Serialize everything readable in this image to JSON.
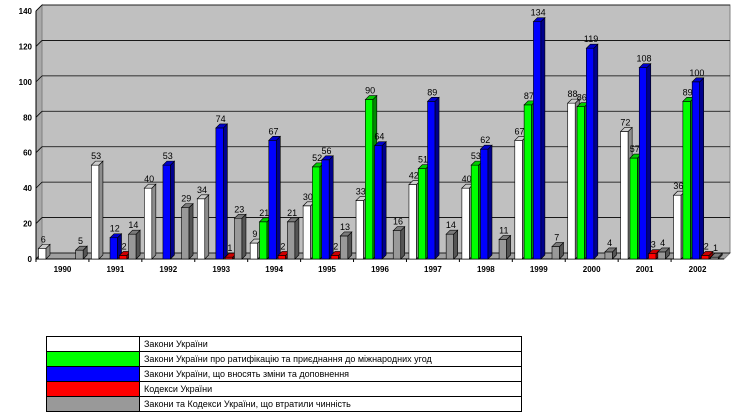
{
  "chart_data": {
    "type": "bar",
    "title": "",
    "xlabel": "",
    "ylabel": "",
    "ylim": [
      0,
      140
    ],
    "yticks": [
      0,
      20,
      40,
      60,
      80,
      100,
      120,
      140
    ],
    "grid": true,
    "legend_position": "bottom-left",
    "categories": [
      "1990",
      "1991",
      "1992",
      "1993",
      "1994",
      "1995",
      "1996",
      "1997",
      "1998",
      "1999",
      "2000",
      "2001",
      "2002"
    ],
    "series": [
      {
        "name": "Закони України",
        "color": "#ffffff",
        "values": [
          6,
          53,
          40,
          34,
          9,
          30,
          33,
          42,
          40,
          67,
          88,
          72,
          36
        ]
      },
      {
        "name": "Закони України про ратифікацію та приєднання до міжнародних угод",
        "color": "#00ff00",
        "values": [
          0,
          0,
          0,
          0,
          21,
          52,
          90,
          51,
          53,
          87,
          86,
          57,
          89
        ]
      },
      {
        "name": "Закони України, що вносять зміни та доповнення",
        "color": "#0000ff",
        "values": [
          0,
          12,
          53,
          74,
          67,
          56,
          64,
          89,
          62,
          134,
          119,
          108,
          100
        ]
      },
      {
        "name": "Кодекси України",
        "color": "#ff0000",
        "values": [
          0,
          2,
          0,
          1,
          2,
          2,
          0,
          0,
          0,
          0,
          0,
          3,
          2
        ]
      },
      {
        "name": "Закони та Кодекси України, що втратили чинність",
        "color": "#999999",
        "values": [
          5,
          14,
          29,
          23,
          21,
          13,
          16,
          14,
          11,
          7,
          4,
          4,
          1
        ]
      }
    ]
  }
}
